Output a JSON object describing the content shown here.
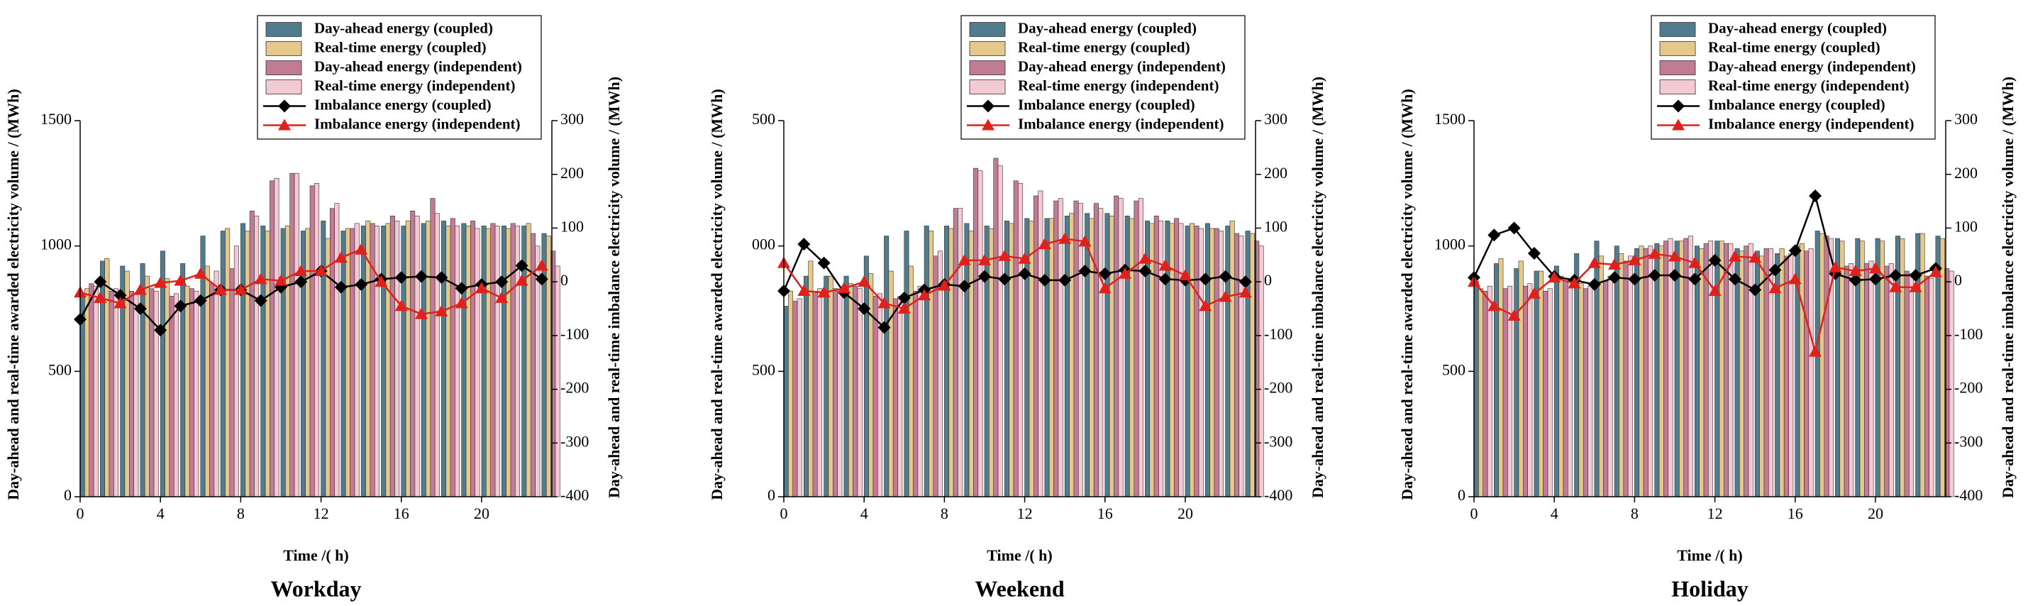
{
  "chart_data": [
    {
      "type": "bar",
      "title": "Workday",
      "x_label": "Time /( h)",
      "y_label": "Day-ahead and real-time awarded electricity volume / (MWh)",
      "y2_label": "Day-ahead and real-time imbalance electricity volume / (MWh)",
      "x": [
        0,
        1,
        2,
        3,
        4,
        5,
        6,
        7,
        8,
        9,
        10,
        11,
        12,
        13,
        14,
        15,
        16,
        17,
        18,
        19,
        20,
        21,
        22,
        23
      ],
      "xlim": [
        0,
        23.5
      ],
      "xticks": [
        0,
        4,
        8,
        12,
        16,
        20
      ],
      "ylim": [
        0,
        1500
      ],
      "yticks": [
        0,
        500,
        1000,
        1500
      ],
      "y2lim": [
        -400,
        300
      ],
      "y2ticks": [
        -400,
        -300,
        -200,
        -100,
        0,
        100,
        200,
        300
      ],
      "series": [
        {
          "name": "Day-ahead energy (coupled)",
          "type": "bar",
          "color": "#507c8e",
          "values": [
            800,
            940,
            920,
            930,
            980,
            930,
            1040,
            1060,
            1090,
            1080,
            1070,
            1060,
            1100,
            1060,
            1080,
            1080,
            1080,
            1090,
            1100,
            1090,
            1080,
            1080,
            1080,
            1050
          ]
        },
        {
          "name": "Real-time energy (coupled)",
          "type": "bar",
          "color": "#e6c88c",
          "values": [
            830,
            950,
            900,
            880,
            870,
            840,
            920,
            1070,
            1060,
            1060,
            1080,
            1070,
            1030,
            1070,
            1100,
            1090,
            1100,
            1100,
            1080,
            1080,
            1070,
            1070,
            1090,
            1040
          ]
        },
        {
          "name": "Day-ahead energy (independent)",
          "type": "bar",
          "color": "#c27b95",
          "values": [
            850,
            820,
            820,
            830,
            800,
            830,
            850,
            910,
            1140,
            1260,
            1290,
            1240,
            1150,
            1070,
            1090,
            1120,
            1140,
            1190,
            1110,
            1100,
            1090,
            1090,
            1050,
            980
          ]
        },
        {
          "name": "Real-time energy (independent)",
          "type": "bar",
          "color": "#f3c9d3",
          "values": [
            840,
            830,
            810,
            820,
            810,
            820,
            900,
            1000,
            1120,
            1270,
            1290,
            1250,
            1170,
            1090,
            1080,
            1100,
            1120,
            1130,
            1080,
            1070,
            1080,
            1080,
            1000,
            920
          ]
        },
        {
          "name": "Imbalance energy (coupled)",
          "type": "line",
          "marker": "diamond",
          "axis": "y2",
          "color": "#000000",
          "values": [
            -70,
            0,
            -25,
            -50,
            -90,
            -45,
            -35,
            -15,
            -15,
            -35,
            -10,
            0,
            20,
            -10,
            -5,
            5,
            8,
            10,
            8,
            -12,
            -5,
            0,
            30,
            5
          ]
        },
        {
          "name": "Imbalance energy (independent)",
          "type": "line",
          "marker": "triangle",
          "axis": "y2",
          "color": "#e0201b",
          "values": [
            -20,
            -30,
            -40,
            -15,
            -2,
            2,
            15,
            -15,
            -15,
            5,
            2,
            20,
            20,
            45,
            60,
            0,
            -45,
            -60,
            -55,
            -40,
            -12,
            -30,
            2,
            30
          ]
        }
      ]
    },
    {
      "type": "bar",
      "title": "Weekend",
      "x_label": "Time /( h)",
      "y_label": "Day-ahead and real-time awarded electricity volume / (MWh)",
      "y2_label": "Day-ahead and real-time imbalance electricity volume / (MWh)",
      "x": [
        0,
        1,
        2,
        3,
        4,
        5,
        6,
        7,
        8,
        9,
        10,
        11,
        12,
        13,
        14,
        15,
        16,
        17,
        18,
        19,
        20,
        21,
        22,
        23
      ],
      "xlim": [
        0,
        23.5
      ],
      "xticks": [
        0,
        4,
        8,
        12,
        16,
        20
      ],
      "ylim": [
        0,
        1500
      ],
      "yticks": [
        0,
        500,
        {
          "value": 1000,
          "label": "000"
        },
        {
          "value": 1500,
          "label": "500"
        }
      ],
      "y2lim": [
        -400,
        300
      ],
      "y2ticks": [
        -400,
        -300,
        -200,
        -100,
        0,
        100,
        200,
        300
      ],
      "series": [
        {
          "name": "Day-ahead energy (coupled)",
          "type": "bar",
          "color": "#507c8e",
          "values": [
            760,
            880,
            880,
            880,
            960,
            1040,
            1060,
            1080,
            1080,
            1090,
            1080,
            1100,
            1110,
            1110,
            1120,
            1130,
            1130,
            1120,
            1100,
            1100,
            1080,
            1090,
            1080,
            1060
          ]
        },
        {
          "name": "Real-time energy (coupled)",
          "type": "bar",
          "color": "#e6c88c",
          "values": [
            820,
            940,
            880,
            850,
            890,
            900,
            920,
            1060,
            1070,
            1060,
            1070,
            1090,
            1100,
            1110,
            1130,
            1110,
            1120,
            1110,
            1090,
            1090,
            1090,
            1070,
            1100,
            1050
          ]
        },
        {
          "name": "Day-ahead energy (independent)",
          "type": "bar",
          "color": "#c27b95",
          "values": [
            780,
            820,
            830,
            840,
            800,
            790,
            820,
            960,
            1150,
            1310,
            1350,
            1260,
            1200,
            1180,
            1180,
            1170,
            1200,
            1180,
            1120,
            1110,
            1080,
            1070,
            1050,
            1020
          ]
        },
        {
          "name": "Real-time energy (independent)",
          "type": "bar",
          "color": "#f3c9d3",
          "values": [
            790,
            830,
            820,
            830,
            810,
            800,
            840,
            980,
            1150,
            1300,
            1320,
            1250,
            1220,
            1190,
            1170,
            1150,
            1190,
            1190,
            1100,
            1090,
            1070,
            1060,
            1040,
            1000
          ]
        },
        {
          "name": "Imbalance energy (coupled)",
          "type": "line",
          "marker": "diamond",
          "axis": "y2",
          "color": "#000000",
          "values": [
            -17,
            70,
            35,
            -20,
            -50,
            -85,
            -30,
            -15,
            -5,
            -8,
            10,
            5,
            15,
            3,
            3,
            20,
            15,
            22,
            20,
            5,
            3,
            5,
            10,
            0
          ]
        },
        {
          "name": "Imbalance energy (independent)",
          "type": "line",
          "marker": "triangle",
          "axis": "y2",
          "color": "#e0201b",
          "values": [
            35,
            -17,
            -20,
            -12,
            0,
            -40,
            -50,
            -25,
            -7,
            40,
            40,
            48,
            43,
            70,
            80,
            75,
            -12,
            15,
            43,
            30,
            12,
            -45,
            -28,
            -20
          ]
        }
      ]
    },
    {
      "type": "bar",
      "title": "Holiday",
      "x_label": "Time /( h)",
      "y_label": "Day-ahead and real-time awarded electricity volume / (MWh)",
      "y2_label": "Day-ahead and real-time imbalance electricity volume / (MWh)",
      "x": [
        0,
        1,
        2,
        3,
        4,
        5,
        6,
        7,
        8,
        9,
        10,
        11,
        12,
        13,
        14,
        15,
        16,
        17,
        18,
        19,
        20,
        21,
        22,
        23
      ],
      "xlim": [
        0,
        23.5
      ],
      "xticks": [
        0,
        4,
        8,
        12,
        16,
        20
      ],
      "ylim": [
        0,
        1500
      ],
      "yticks": [
        0,
        500,
        1000,
        1500
      ],
      "y2lim": [
        -400,
        300
      ],
      "y2ticks": [
        -400,
        -300,
        -200,
        -100,
        0,
        100,
        200,
        300
      ],
      "series": [
        {
          "name": "Day-ahead energy (coupled)",
          "type": "bar",
          "color": "#507c8e",
          "values": [
            860,
            930,
            910,
            900,
            920,
            970,
            1020,
            1000,
            990,
            1010,
            1020,
            1000,
            1020,
            990,
            980,
            970,
            1000,
            1060,
            1030,
            1030,
            1030,
            1040,
            1050,
            1040
          ]
        },
        {
          "name": "Real-time energy (coupled)",
          "type": "bar",
          "color": "#e6c88c",
          "values": [
            830,
            950,
            940,
            900,
            880,
            850,
            960,
            970,
            1000,
            1000,
            1020,
            990,
            1020,
            980,
            960,
            990,
            1010,
            1050,
            1020,
            1020,
            1020,
            1030,
            1050,
            1030
          ]
        },
        {
          "name": "Day-ahead energy (independent)",
          "type": "bar",
          "color": "#c27b95",
          "values": [
            820,
            830,
            840,
            820,
            860,
            830,
            860,
            940,
            990,
            1020,
            1030,
            1010,
            1010,
            1000,
            990,
            960,
            980,
            1040,
            920,
            930,
            920,
            900,
            880,
            910
          ]
        },
        {
          "name": "Real-time energy (independent)",
          "type": "bar",
          "color": "#f3c9d3",
          "values": [
            840,
            840,
            850,
            830,
            870,
            840,
            880,
            960,
            1000,
            1030,
            1040,
            1020,
            1010,
            1010,
            990,
            970,
            990,
            1030,
            930,
            940,
            930,
            890,
            870,
            900
          ]
        },
        {
          "name": "Imbalance energy (coupled)",
          "type": "line",
          "marker": "diamond",
          "axis": "y2",
          "color": "#000000",
          "values": [
            8,
            87,
            100,
            53,
            10,
            3,
            -5,
            8,
            5,
            12,
            12,
            5,
            40,
            5,
            -15,
            22,
            58,
            160,
            15,
            3,
            5,
            12,
            12,
            25
          ]
        },
        {
          "name": "Imbalance energy (independent)",
          "type": "line",
          "marker": "triangle",
          "axis": "y2",
          "color": "#e0201b",
          "values": [
            0,
            -45,
            -63,
            -22,
            8,
            -3,
            35,
            32,
            40,
            52,
            47,
            35,
            -17,
            47,
            45,
            -12,
            5,
            -130,
            27,
            20,
            25,
            -10,
            -10,
            18
          ]
        }
      ]
    }
  ]
}
